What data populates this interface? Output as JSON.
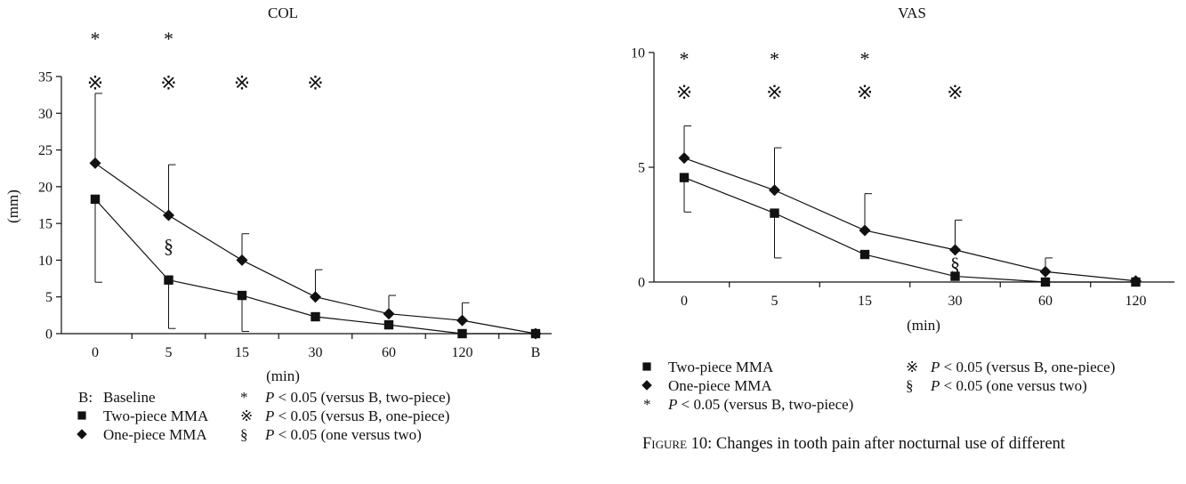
{
  "chart_data": [
    {
      "type": "line",
      "title": "COL",
      "ylabel": "(mm)",
      "xlabel": "(min)",
      "categories": [
        "0",
        "5",
        "15",
        "30",
        "60",
        "120",
        "B"
      ],
      "ylim": [
        0,
        35
      ],
      "yticks": [
        0,
        5,
        10,
        15,
        20,
        25,
        30,
        35
      ],
      "grid": false,
      "series": [
        {
          "name": "Two-piece MMA",
          "marker": "square",
          "values": [
            18.3,
            7.3,
            5.2,
            2.3,
            1.2,
            0,
            0
          ],
          "error_upper": [
            null,
            null,
            null,
            null,
            null,
            null,
            null
          ]
        },
        {
          "name": "One-piece MMA",
          "marker": "diamond",
          "values": [
            23.2,
            16.1,
            10.0,
            5.0,
            2.7,
            1.8,
            0
          ],
          "error_upper": [
            32.7,
            23.0,
            13.6,
            8.7,
            5.2,
            4.2,
            null
          ]
        }
      ],
      "lower_errors": [
        {
          "category": "0",
          "y": 7.0
        },
        {
          "category": "5",
          "y": 0.7
        },
        {
          "category": "15",
          "y": 0.3
        }
      ],
      "annotations": [
        {
          "symbol": "*",
          "category": "0",
          "y": 40.2
        },
        {
          "symbol": "*",
          "category": "5",
          "y": 40.2
        },
        {
          "symbol": "※",
          "category": "0",
          "y": 34.2
        },
        {
          "symbol": "※",
          "category": "5",
          "y": 34.2
        },
        {
          "symbol": "※",
          "category": "15",
          "y": 34.2
        },
        {
          "symbol": "※",
          "category": "30",
          "y": 34.2
        },
        {
          "symbol": "§",
          "category": "5",
          "y": 12.0
        }
      ],
      "legend": {
        "placement": "bottom",
        "left": [
          {
            "symbol": "B:",
            "text": "Baseline"
          },
          {
            "symbol": "square",
            "text": "Two-piece MMA"
          },
          {
            "symbol": "diamond",
            "text": "One-piece MMA"
          }
        ],
        "right": [
          {
            "symbol": "*",
            "text": "P < 0.05 (versus B, two-piece)"
          },
          {
            "symbol": "※",
            "text": "P < 0.05 (versus B, one-piece)"
          },
          {
            "symbol": "§",
            "text": "P < 0.05 (one versus two)"
          }
        ]
      }
    },
    {
      "type": "line",
      "title": "VAS",
      "ylabel": "",
      "xlabel": "(min)",
      "categories": [
        "0",
        "5",
        "15",
        "30",
        "60",
        "120"
      ],
      "ylim": [
        0,
        10
      ],
      "yticks": [
        0,
        5,
        10
      ],
      "grid": false,
      "series": [
        {
          "name": "Two-piece MMA",
          "marker": "square",
          "values": [
            4.55,
            3.0,
            1.2,
            0.25,
            0,
            0
          ],
          "error_upper": [
            null,
            null,
            null,
            null,
            null,
            null
          ]
        },
        {
          "name": "One-piece MMA",
          "marker": "diamond",
          "values": [
            5.4,
            4.0,
            2.25,
            1.4,
            0.45,
            0.05
          ],
          "error_upper": [
            6.8,
            5.85,
            3.85,
            2.7,
            1.05,
            null
          ]
        }
      ],
      "lower_errors": [
        {
          "category": "0",
          "y": 3.05
        },
        {
          "category": "5",
          "y": 1.05
        }
      ],
      "annotations": [
        {
          "symbol": "*",
          "category": "0",
          "y": 9.75
        },
        {
          "symbol": "*",
          "category": "5",
          "y": 9.75
        },
        {
          "symbol": "*",
          "category": "15",
          "y": 9.75
        },
        {
          "symbol": "※",
          "category": "0",
          "y": 8.3
        },
        {
          "symbol": "※",
          "category": "5",
          "y": 8.3
        },
        {
          "symbol": "※",
          "category": "15",
          "y": 8.3
        },
        {
          "symbol": "※",
          "category": "30",
          "y": 8.3
        },
        {
          "symbol": "§",
          "category": "30",
          "y": 0.8
        }
      ],
      "legend": {
        "placement": "bottom",
        "left": [
          {
            "symbol": "square",
            "text": "Two-piece MMA"
          },
          {
            "symbol": "diamond",
            "text": "One-piece MMA"
          },
          {
            "symbol": "*",
            "text": "P < 0.05 (versus B, two-piece)"
          }
        ],
        "right": [
          {
            "symbol": "※",
            "text": "P < 0.05 (versus B, one-piece)"
          },
          {
            "symbol": "§",
            "text": "P < 0.05 (one versus two)"
          }
        ]
      }
    }
  ],
  "caption": "Figure 10: Changes in tooth pain after nocturnal use of different"
}
